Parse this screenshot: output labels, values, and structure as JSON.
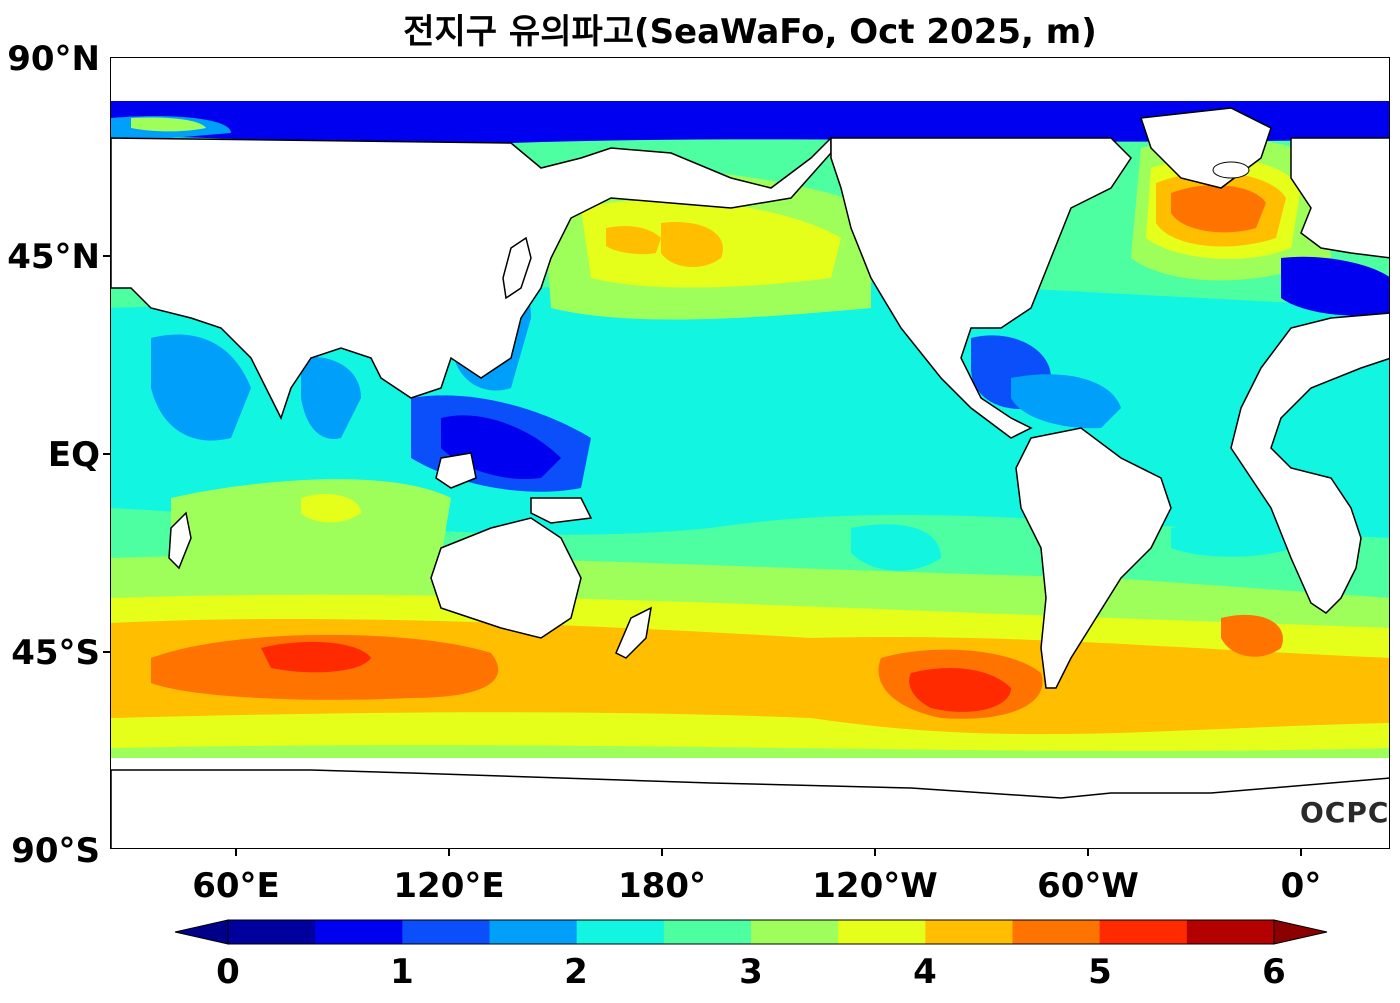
{
  "title": "전지구 유의파고(SeaWaFo, Oct 2025, m)",
  "y_axis_labels": [
    "90°N",
    "45°N",
    "EQ",
    "45°S",
    "90°S"
  ],
  "x_axis_labels": [
    "60°E",
    "120°E",
    "180°",
    "120°W",
    "60°W",
    "0°"
  ],
  "colorbar": {
    "tick_labels": [
      "0",
      "1",
      "2",
      "3",
      "4",
      "5",
      "6"
    ],
    "range": [
      0,
      6
    ],
    "step": 0.5,
    "extend": "both",
    "under_color": "#00008B",
    "over_color": "#8B0000",
    "colors": [
      "#00009f",
      "#0000f0",
      "#0a4ffa",
      "#009ffa",
      "#12f5e0",
      "#4dffa0",
      "#9fff5a",
      "#e6ff1a",
      "#ffbf00",
      "#ff7300",
      "#ff2a00",
      "#b30000"
    ]
  },
  "logo_text": "OCPC",
  "chart_data": {
    "type": "heatmap",
    "title": "전지구 유의파고(SeaWaFo, Oct 2025, m)",
    "variable": "significant wave height",
    "units": "m",
    "projection": "equirectangular",
    "lon_ticks": [
      "60°E",
      "120°E",
      "180°",
      "120°W",
      "60°W",
      "0°"
    ],
    "lat_ticks": [
      "90°N",
      "45°N",
      "EQ",
      "45°S",
      "90°S"
    ],
    "color_range": [
      0,
      6
    ],
    "max_regions": [
      {
        "region": "Southern Indian Ocean (~70-100°E, 45-50°S)",
        "value_range_m": [
          4.5,
          5.5
        ]
      },
      {
        "region": "Southeast Pacific (~90-70°W, 50-55°S)",
        "value_range_m": [
          4.5,
          5.5
        ]
      },
      {
        "region": "North Atlantic (~40-20°W, 55-62°N)",
        "value_range_m": [
          4.0,
          5.0
        ]
      },
      {
        "region": "South Atlantic (~20-0°W, 45°S)",
        "value_range_m": [
          4.0,
          5.0
        ]
      },
      {
        "region": "North Pacific (~170°E-170°W, 45°N)",
        "value_range_m": [
          3.5,
          4.5
        ]
      }
    ],
    "min_regions": [
      {
        "region": "Indonesian seas / Arctic coasts / enclosed seas",
        "value_range_m": [
          0,
          1.0
        ]
      }
    ],
    "tropical_typical_m": [
      2.0,
      2.5
    ]
  }
}
